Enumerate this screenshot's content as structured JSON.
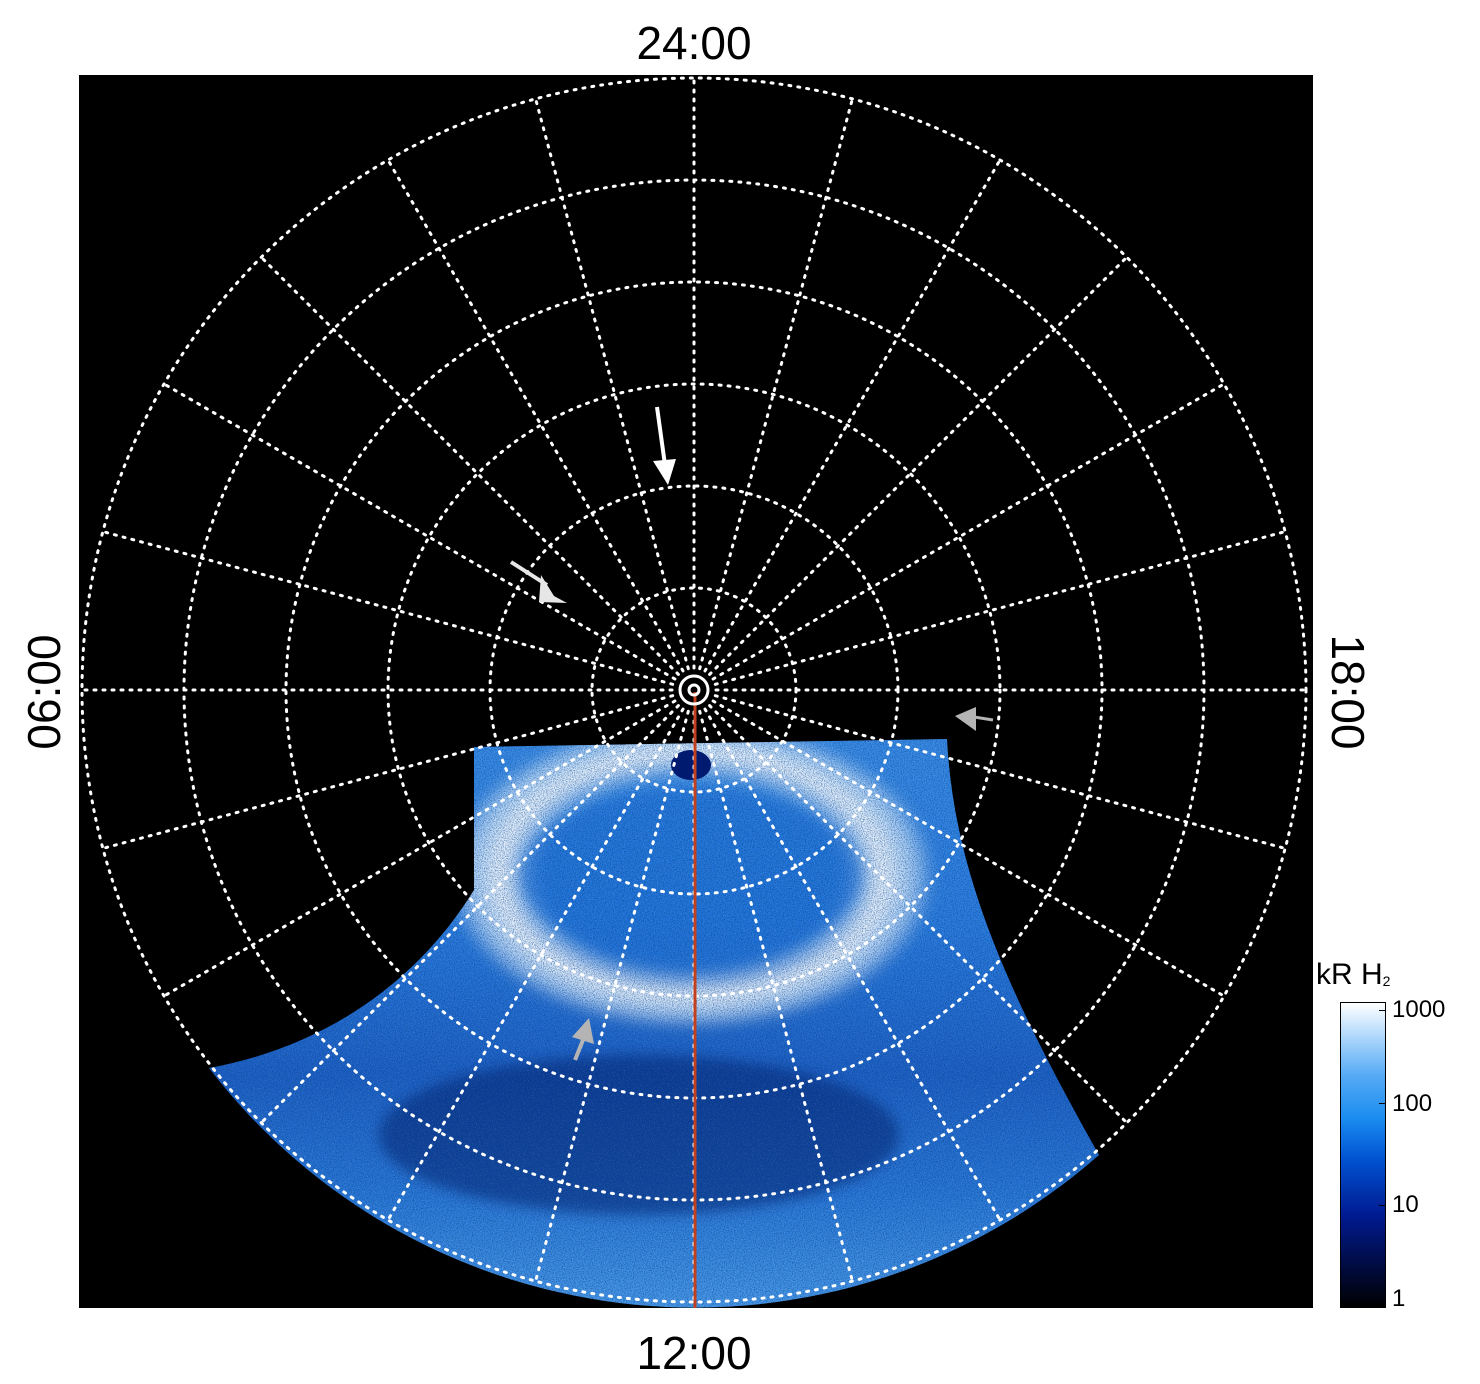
{
  "local_time_labels": {
    "top": "24:00",
    "bottom": "12:00",
    "left": "06:00",
    "right": "18:00"
  },
  "colorbar": {
    "title_main": "kR H",
    "title_sub": "2",
    "ticks": [
      "1000",
      "100",
      "10",
      "1"
    ],
    "colors": [
      "#000000",
      "#001a90",
      "#1a8cf0",
      "#ffffff"
    ]
  },
  "colors": {
    "background": "#000000",
    "grid": "#ffffff",
    "meridian_line": "#c0401f",
    "arrow_white": "#ffffff",
    "arrow_gray": "#b4b4b4"
  },
  "grid": {
    "circles": 6,
    "meridians": 24
  }
}
